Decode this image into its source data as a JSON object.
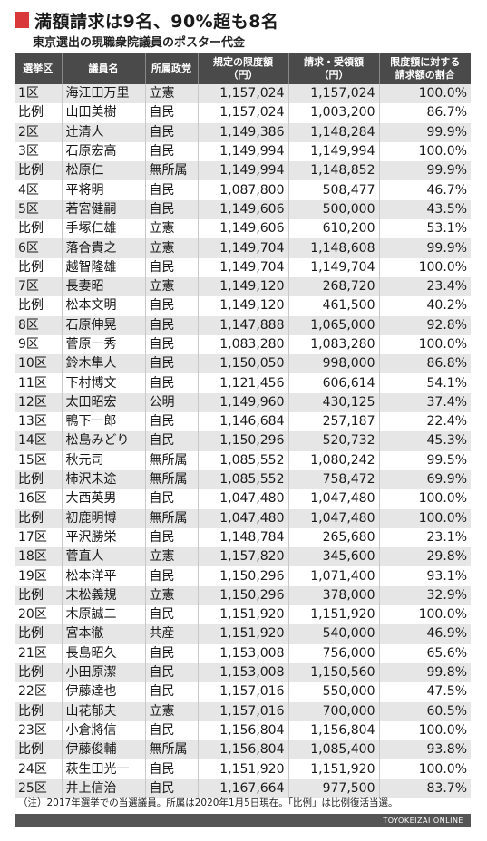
{
  "title": "満額請求は9名、90%超も8名",
  "subtitle": "東京選出の現職衆院議員のポスター代金",
  "colors": {
    "title_mark": "#d8383a",
    "header_bg": "#4a4a4a",
    "row_stripe": "#e6e6e6",
    "footer_bg": "#555555"
  },
  "headers": [
    "選挙区",
    "議員名",
    "所属政党",
    "規定の限度額\n（円）",
    "請求・受領額\n（円）",
    "限度額に対する\n請求額の割合"
  ],
  "rows": [
    [
      "1区",
      "海江田万里",
      "立憲",
      "1,157,024",
      "1,157,024",
      "100.0%"
    ],
    [
      "比例",
      "山田美樹",
      "自民",
      "1,157,024",
      "1,003,200",
      "86.7%"
    ],
    [
      "2区",
      "辻清人",
      "自民",
      "1,149,386",
      "1,148,284",
      "99.9%"
    ],
    [
      "3区",
      "石原宏高",
      "自民",
      "1,149,994",
      "1,149,994",
      "100.0%"
    ],
    [
      "比例",
      "松原仁",
      "無所属",
      "1,149,994",
      "1,148,852",
      "99.9%"
    ],
    [
      "4区",
      "平将明",
      "自民",
      "1,087,800",
      "508,477",
      "46.7%"
    ],
    [
      "5区",
      "若宮健嗣",
      "自民",
      "1,149,606",
      "500,000",
      "43.5%"
    ],
    [
      "比例",
      "手塚仁雄",
      "立憲",
      "1,149,606",
      "610,200",
      "53.1%"
    ],
    [
      "6区",
      "落合貴之",
      "立憲",
      "1,149,704",
      "1,148,608",
      "99.9%"
    ],
    [
      "比例",
      "越智隆雄",
      "自民",
      "1,149,704",
      "1,149,704",
      "100.0%"
    ],
    [
      "7区",
      "長妻昭",
      "立憲",
      "1,149,120",
      "268,720",
      "23.4%"
    ],
    [
      "比例",
      "松本文明",
      "自民",
      "1,149,120",
      "461,500",
      "40.2%"
    ],
    [
      "8区",
      "石原伸晃",
      "自民",
      "1,147,888",
      "1,065,000",
      "92.8%"
    ],
    [
      "9区",
      "菅原一秀",
      "自民",
      "1,083,280",
      "1,083,280",
      "100.0%"
    ],
    [
      "10区",
      "鈴木隼人",
      "自民",
      "1,150,050",
      "998,000",
      "86.8%"
    ],
    [
      "11区",
      "下村博文",
      "自民",
      "1,121,456",
      "606,614",
      "54.1%"
    ],
    [
      "12区",
      "太田昭宏",
      "公明",
      "1,149,960",
      "430,125",
      "37.4%"
    ],
    [
      "13区",
      "鴨下一郎",
      "自民",
      "1,146,684",
      "257,187",
      "22.4%"
    ],
    [
      "14区",
      "松島みどり",
      "自民",
      "1,150,296",
      "520,732",
      "45.3%"
    ],
    [
      "15区",
      "秋元司",
      "無所属",
      "1,085,552",
      "1,080,242",
      "99.5%"
    ],
    [
      "比例",
      "柿沢未途",
      "無所属",
      "1,085,552",
      "758,472",
      "69.9%"
    ],
    [
      "16区",
      "大西英男",
      "自民",
      "1,047,480",
      "1,047,480",
      "100.0%"
    ],
    [
      "比例",
      "初鹿明博",
      "無所属",
      "1,047,480",
      "1,047,480",
      "100.0%"
    ],
    [
      "17区",
      "平沢勝栄",
      "自民",
      "1,148,784",
      "265,680",
      "23.1%"
    ],
    [
      "18区",
      "菅直人",
      "立憲",
      "1,157,820",
      "345,600",
      "29.8%"
    ],
    [
      "19区",
      "松本洋平",
      "自民",
      "1,150,296",
      "1,071,400",
      "93.1%"
    ],
    [
      "比例",
      "末松義規",
      "立憲",
      "1,150,296",
      "378,000",
      "32.9%"
    ],
    [
      "20区",
      "木原誠二",
      "自民",
      "1,151,920",
      "1,151,920",
      "100.0%"
    ],
    [
      "比例",
      "宮本徹",
      "共産",
      "1,151,920",
      "540,000",
      "46.9%"
    ],
    [
      "21区",
      "長島昭久",
      "自民",
      "1,153,008",
      "756,000",
      "65.6%"
    ],
    [
      "比例",
      "小田原潔",
      "自民",
      "1,153,008",
      "1,150,560",
      "99.8%"
    ],
    [
      "22区",
      "伊藤達也",
      "自民",
      "1,157,016",
      "550,000",
      "47.5%"
    ],
    [
      "比例",
      "山花郁夫",
      "立憲",
      "1,157,016",
      "700,000",
      "60.5%"
    ],
    [
      "23区",
      "小倉將信",
      "自民",
      "1,156,804",
      "1,156,804",
      "100.0%"
    ],
    [
      "比例",
      "伊藤俊輔",
      "無所属",
      "1,156,804",
      "1,085,400",
      "93.8%"
    ],
    [
      "24区",
      "萩生田光一",
      "自民",
      "1,151,920",
      "1,151,920",
      "100.0%"
    ],
    [
      "25区",
      "井上信治",
      "自民",
      "1,167,664",
      "977,500",
      "83.7%"
    ]
  ],
  "note": "（注）2017年選挙での当選議員。所属は2020年1月5日現在。「比例」は比例復活当選。",
  "footer_credit": "TOYOKEIZAI ONLINE"
}
